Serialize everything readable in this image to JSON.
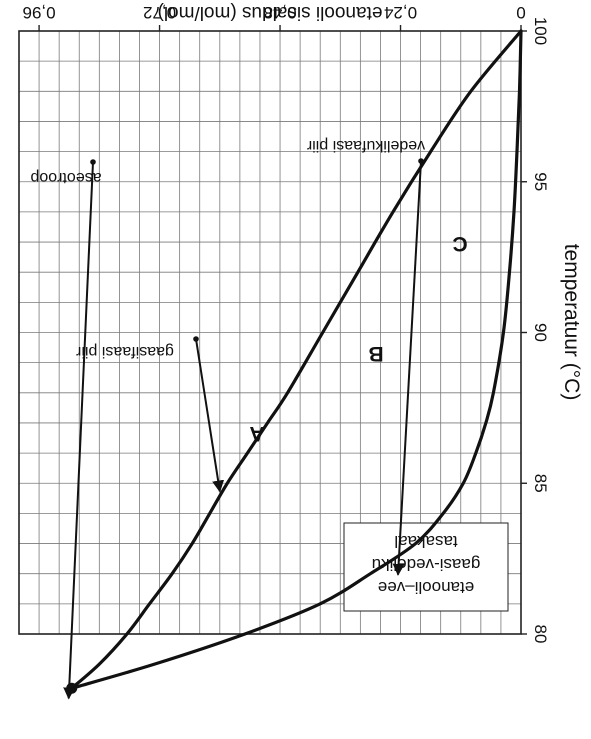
{
  "chart_data": {
    "type": "line",
    "title": "",
    "xlabel": "temperatuur (°C)",
    "ylabel": "etanooli sisaldus (mol/mol)",
    "xlim": [
      80,
      100
    ],
    "ylim": [
      0,
      1
    ],
    "x_ticks": [
      80,
      85,
      90,
      95,
      100
    ],
    "x_tick_labels": [
      "80",
      "85",
      "90",
      "95",
      "100"
    ],
    "y_ticks": [
      0,
      0.24,
      0.48,
      0.72,
      0.96
    ],
    "y_tick_labels": [
      "0",
      "0,24",
      "0,48",
      "0,72",
      "0,96"
    ],
    "grid": true,
    "rotated_180": true,
    "series": [
      {
        "name": "gaasifaasi piir",
        "x": [
          78.2,
          79,
          80,
          81,
          82,
          83,
          84,
          85,
          86,
          87,
          88,
          90,
          92,
          94,
          96,
          98,
          100
        ],
        "y": [
          0.895,
          0.84,
          0.785,
          0.74,
          0.695,
          0.655,
          0.62,
          0.585,
          0.545,
          0.505,
          0.465,
          0.395,
          0.325,
          0.255,
          0.18,
          0.1,
          0
        ]
      },
      {
        "name": "vedelikufaasi piir",
        "x": [
          78.2,
          79,
          80,
          81,
          82,
          83,
          84,
          85,
          86,
          87,
          88,
          90,
          92,
          94,
          96,
          98,
          100
        ],
        "y": [
          0.895,
          0.73,
          0.55,
          0.4,
          0.3,
          0.21,
          0.155,
          0.115,
          0.09,
          0.07,
          0.055,
          0.035,
          0.023,
          0.014,
          0.008,
          0.003,
          0
        ]
      }
    ],
    "azeotrope": {
      "x": 78.2,
      "y": 0.895,
      "label": "aseotroop"
    },
    "regions": [
      "A",
      "B",
      "C"
    ],
    "annotations": {
      "gas_boundary": "gaasifaasi piir",
      "liquid_boundary": "vedelikufaasi piir",
      "azeotrope": "aseotroop"
    },
    "legend": {
      "placement": "top-left",
      "lines": [
        "etanooli–vee",
        "gaasi-vedeliku",
        "tasakaal"
      ]
    }
  }
}
